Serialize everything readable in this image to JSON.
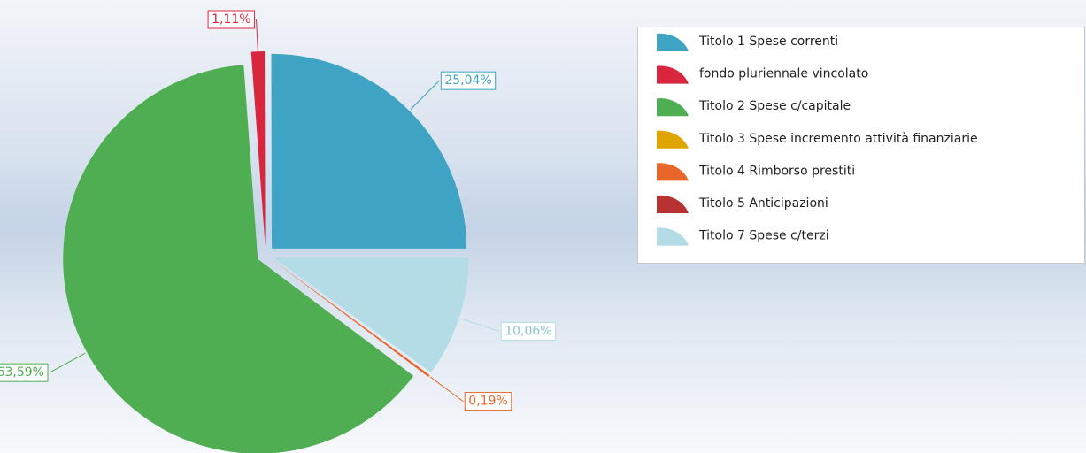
{
  "chart_data": {
    "type": "pie",
    "categories": [
      "Titolo 1 Spese correnti",
      "fondo pluriennale vincolato",
      "Titolo 2 Spese c/capitale",
      "Titolo 3 Spese incremento attività finanziarie",
      "Titolo 4 Rimborso prestiti",
      "Titolo 5 Anticipazioni",
      "Titolo 7 Spese c/terzi"
    ],
    "values": [
      25.04,
      1.11,
      63.59,
      0,
      0.19,
      0,
      10.06
    ],
    "value_labels": [
      "25,04%",
      "1,11%",
      "63,59%",
      null,
      "0,19%",
      null,
      "10,06%"
    ],
    "colors": [
      "#3fa3c4",
      "#d9263f",
      "#4fad52",
      "#e0a500",
      "#e8662a",
      "#b83232",
      "#b3dce6"
    ],
    "legend": "right"
  }
}
